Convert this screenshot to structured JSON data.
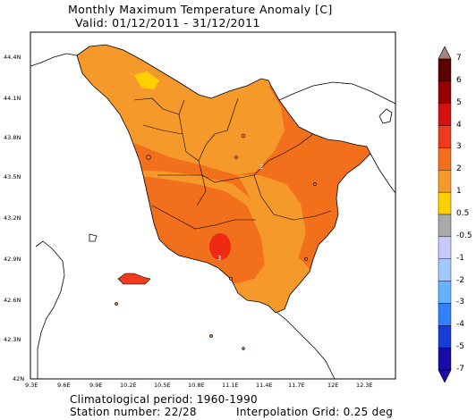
{
  "header": {
    "title": "Monthly Maximum Temperature Anomaly [C]",
    "valid": "Valid: 01/12/2011 - 31/12/2011"
  },
  "map": {
    "lat_labels": [
      "44.4N",
      "44.1N",
      "43.8N",
      "43.5N",
      "43.2N",
      "42.9N",
      "42.6N",
      "42.3N",
      "42N"
    ],
    "lon_labels": [
      "9.3E",
      "9.6E",
      "9.9E",
      "10.2E",
      "10.5E",
      "10.8E",
      "11.1E",
      "11.4E",
      "11.7E",
      "12E",
      "12.3E"
    ],
    "contour_labels": [
      "2",
      "3"
    ]
  },
  "legend": {
    "labels": [
      "7",
      "6",
      "5",
      "4",
      "3",
      "2",
      "1",
      "0.5",
      "-0.5",
      "-1",
      "-2",
      "-3",
      "-4",
      "-5",
      "-7"
    ],
    "colors": {
      "7": "#a08878",
      "6": "#5c0000",
      "5": "#960000",
      "4": "#d41111",
      "3": "#ef3b1c",
      "2": "#f26f1c",
      "1": "#f59a2a",
      "0.5": "#ffd000",
      "-0.5": "#a9a9a9",
      "-1": "#c8c8ff",
      "-2": "#a2c8ff",
      "-3": "#64b3ff",
      "-4": "#3380ff",
      "-5": "#1a3bd6",
      "-7": "#1a0aa8"
    }
  },
  "footer": {
    "climatological_period": "Climatological period: 1960-1990",
    "station_number": "Station number: 22/28",
    "interpolation_grid": "Interpolation Grid: 0.25 deg"
  }
}
